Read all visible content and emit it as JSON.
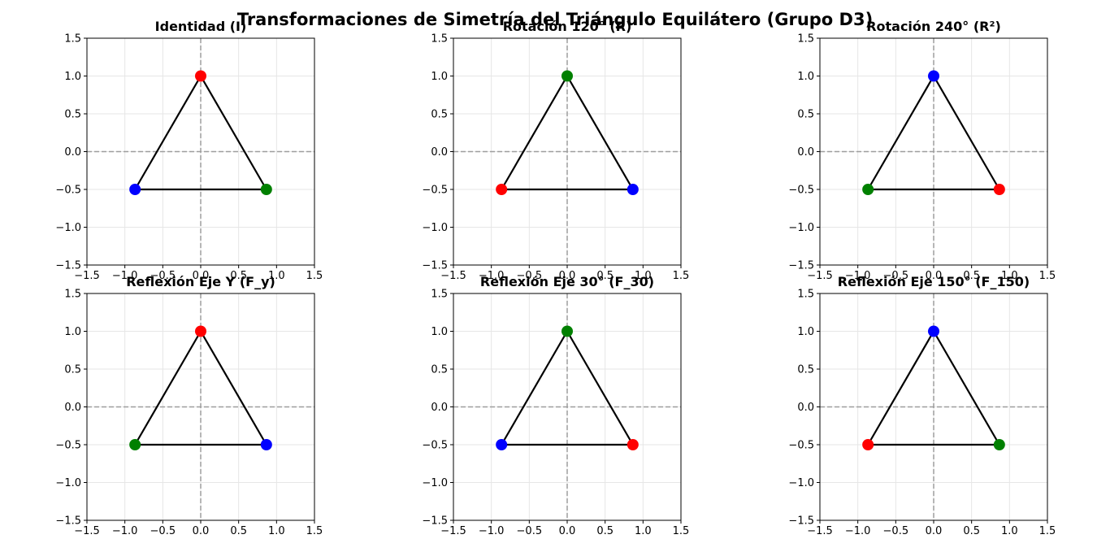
{
  "figure": {
    "suptitle": "Transformaciones de Simetría del Triángulo Equilátero (Grupo D3)"
  },
  "colors": {
    "red": "#ff0000",
    "green": "#008000",
    "blue": "#0000ff",
    "edge": "#000000",
    "axis_line": "#9e9e9e",
    "grid": "#e6e6e6"
  },
  "chart_data": [
    {
      "type": "scatter",
      "title": "Identidad (I)",
      "xlim": [
        -1.5,
        1.5
      ],
      "ylim": [
        -1.5,
        1.5
      ],
      "xticks": [
        "−1.5",
        "−1.0",
        "−0.5",
        "0.0",
        "0.5",
        "1.0",
        "1.5"
      ],
      "yticks": [
        "−1.5",
        "−1.0",
        "−0.5",
        "0.0",
        "0.5",
        "1.0",
        "1.5"
      ],
      "grid": true,
      "triangle": [
        [
          0,
          1
        ],
        [
          -0.866,
          -0.5
        ],
        [
          0.866,
          -0.5
        ]
      ],
      "points": [
        {
          "x": 0,
          "y": 1,
          "color": "red"
        },
        {
          "x": -0.866,
          "y": -0.5,
          "color": "blue"
        },
        {
          "x": 0.866,
          "y": -0.5,
          "color": "green"
        }
      ]
    },
    {
      "type": "scatter",
      "title": "Rotación 120° (R)",
      "xlim": [
        -1.5,
        1.5
      ],
      "ylim": [
        -1.5,
        1.5
      ],
      "xticks": [
        "−1.5",
        "−1.0",
        "−0.5",
        "0.0",
        "0.5",
        "1.0",
        "1.5"
      ],
      "yticks": [
        "−1.5",
        "−1.0",
        "−0.5",
        "0.0",
        "0.5",
        "1.0",
        "1.5"
      ],
      "grid": true,
      "triangle": [
        [
          0,
          1
        ],
        [
          -0.866,
          -0.5
        ],
        [
          0.866,
          -0.5
        ]
      ],
      "points": [
        {
          "x": 0,
          "y": 1,
          "color": "green"
        },
        {
          "x": -0.866,
          "y": -0.5,
          "color": "red"
        },
        {
          "x": 0.866,
          "y": -0.5,
          "color": "blue"
        }
      ]
    },
    {
      "type": "scatter",
      "title": "Rotación 240° (R²)",
      "xlim": [
        -1.5,
        1.5
      ],
      "ylim": [
        -1.5,
        1.5
      ],
      "xticks": [
        "−1.5",
        "−1.0",
        "−0.5",
        "0.0",
        "0.5",
        "1.0",
        "1.5"
      ],
      "yticks": [
        "−1.5",
        "−1.0",
        "−0.5",
        "0.0",
        "0.5",
        "1.0",
        "1.5"
      ],
      "grid": true,
      "triangle": [
        [
          0,
          1
        ],
        [
          -0.866,
          -0.5
        ],
        [
          0.866,
          -0.5
        ]
      ],
      "points": [
        {
          "x": 0,
          "y": 1,
          "color": "blue"
        },
        {
          "x": -0.866,
          "y": -0.5,
          "color": "green"
        },
        {
          "x": 0.866,
          "y": -0.5,
          "color": "red"
        }
      ]
    },
    {
      "type": "scatter",
      "title": "Reflexión Eje Y (F_y)",
      "xlim": [
        -1.5,
        1.5
      ],
      "ylim": [
        -1.5,
        1.5
      ],
      "xticks": [
        "−1.5",
        "−1.0",
        "−0.5",
        "0.0",
        "0.5",
        "1.0",
        "1.5"
      ],
      "yticks": [
        "−1.5",
        "−1.0",
        "−0.5",
        "0.0",
        "0.5",
        "1.0",
        "1.5"
      ],
      "grid": true,
      "triangle": [
        [
          0,
          1
        ],
        [
          -0.866,
          -0.5
        ],
        [
          0.866,
          -0.5
        ]
      ],
      "points": [
        {
          "x": 0,
          "y": 1,
          "color": "red"
        },
        {
          "x": -0.866,
          "y": -0.5,
          "color": "green"
        },
        {
          "x": 0.866,
          "y": -0.5,
          "color": "blue"
        }
      ]
    },
    {
      "type": "scatter",
      "title": "Reflexión Eje 30° (F_30)",
      "xlim": [
        -1.5,
        1.5
      ],
      "ylim": [
        -1.5,
        1.5
      ],
      "xticks": [
        "−1.5",
        "−1.0",
        "−0.5",
        "0.0",
        "0.5",
        "1.0",
        "1.5"
      ],
      "yticks": [
        "−1.5",
        "−1.0",
        "−0.5",
        "0.0",
        "0.5",
        "1.0",
        "1.5"
      ],
      "grid": true,
      "triangle": [
        [
          0,
          1
        ],
        [
          -0.866,
          -0.5
        ],
        [
          0.866,
          -0.5
        ]
      ],
      "points": [
        {
          "x": 0,
          "y": 1,
          "color": "green"
        },
        {
          "x": -0.866,
          "y": -0.5,
          "color": "blue"
        },
        {
          "x": 0.866,
          "y": -0.5,
          "color": "red"
        }
      ]
    },
    {
      "type": "scatter",
      "title": "Reflexión Eje 150° (F_150)",
      "xlim": [
        -1.5,
        1.5
      ],
      "ylim": [
        -1.5,
        1.5
      ],
      "xticks": [
        "−1.5",
        "−1.0",
        "−0.5",
        "0.0",
        "0.5",
        "1.0",
        "1.5"
      ],
      "yticks": [
        "−1.5",
        "−1.0",
        "−0.5",
        "0.0",
        "0.5",
        "1.0",
        "1.5"
      ],
      "grid": true,
      "triangle": [
        [
          0,
          1
        ],
        [
          -0.866,
          -0.5
        ],
        [
          0.866,
          -0.5
        ]
      ],
      "points": [
        {
          "x": 0,
          "y": 1,
          "color": "blue"
        },
        {
          "x": -0.866,
          "y": -0.5,
          "color": "red"
        },
        {
          "x": 0.866,
          "y": -0.5,
          "color": "green"
        }
      ]
    }
  ]
}
